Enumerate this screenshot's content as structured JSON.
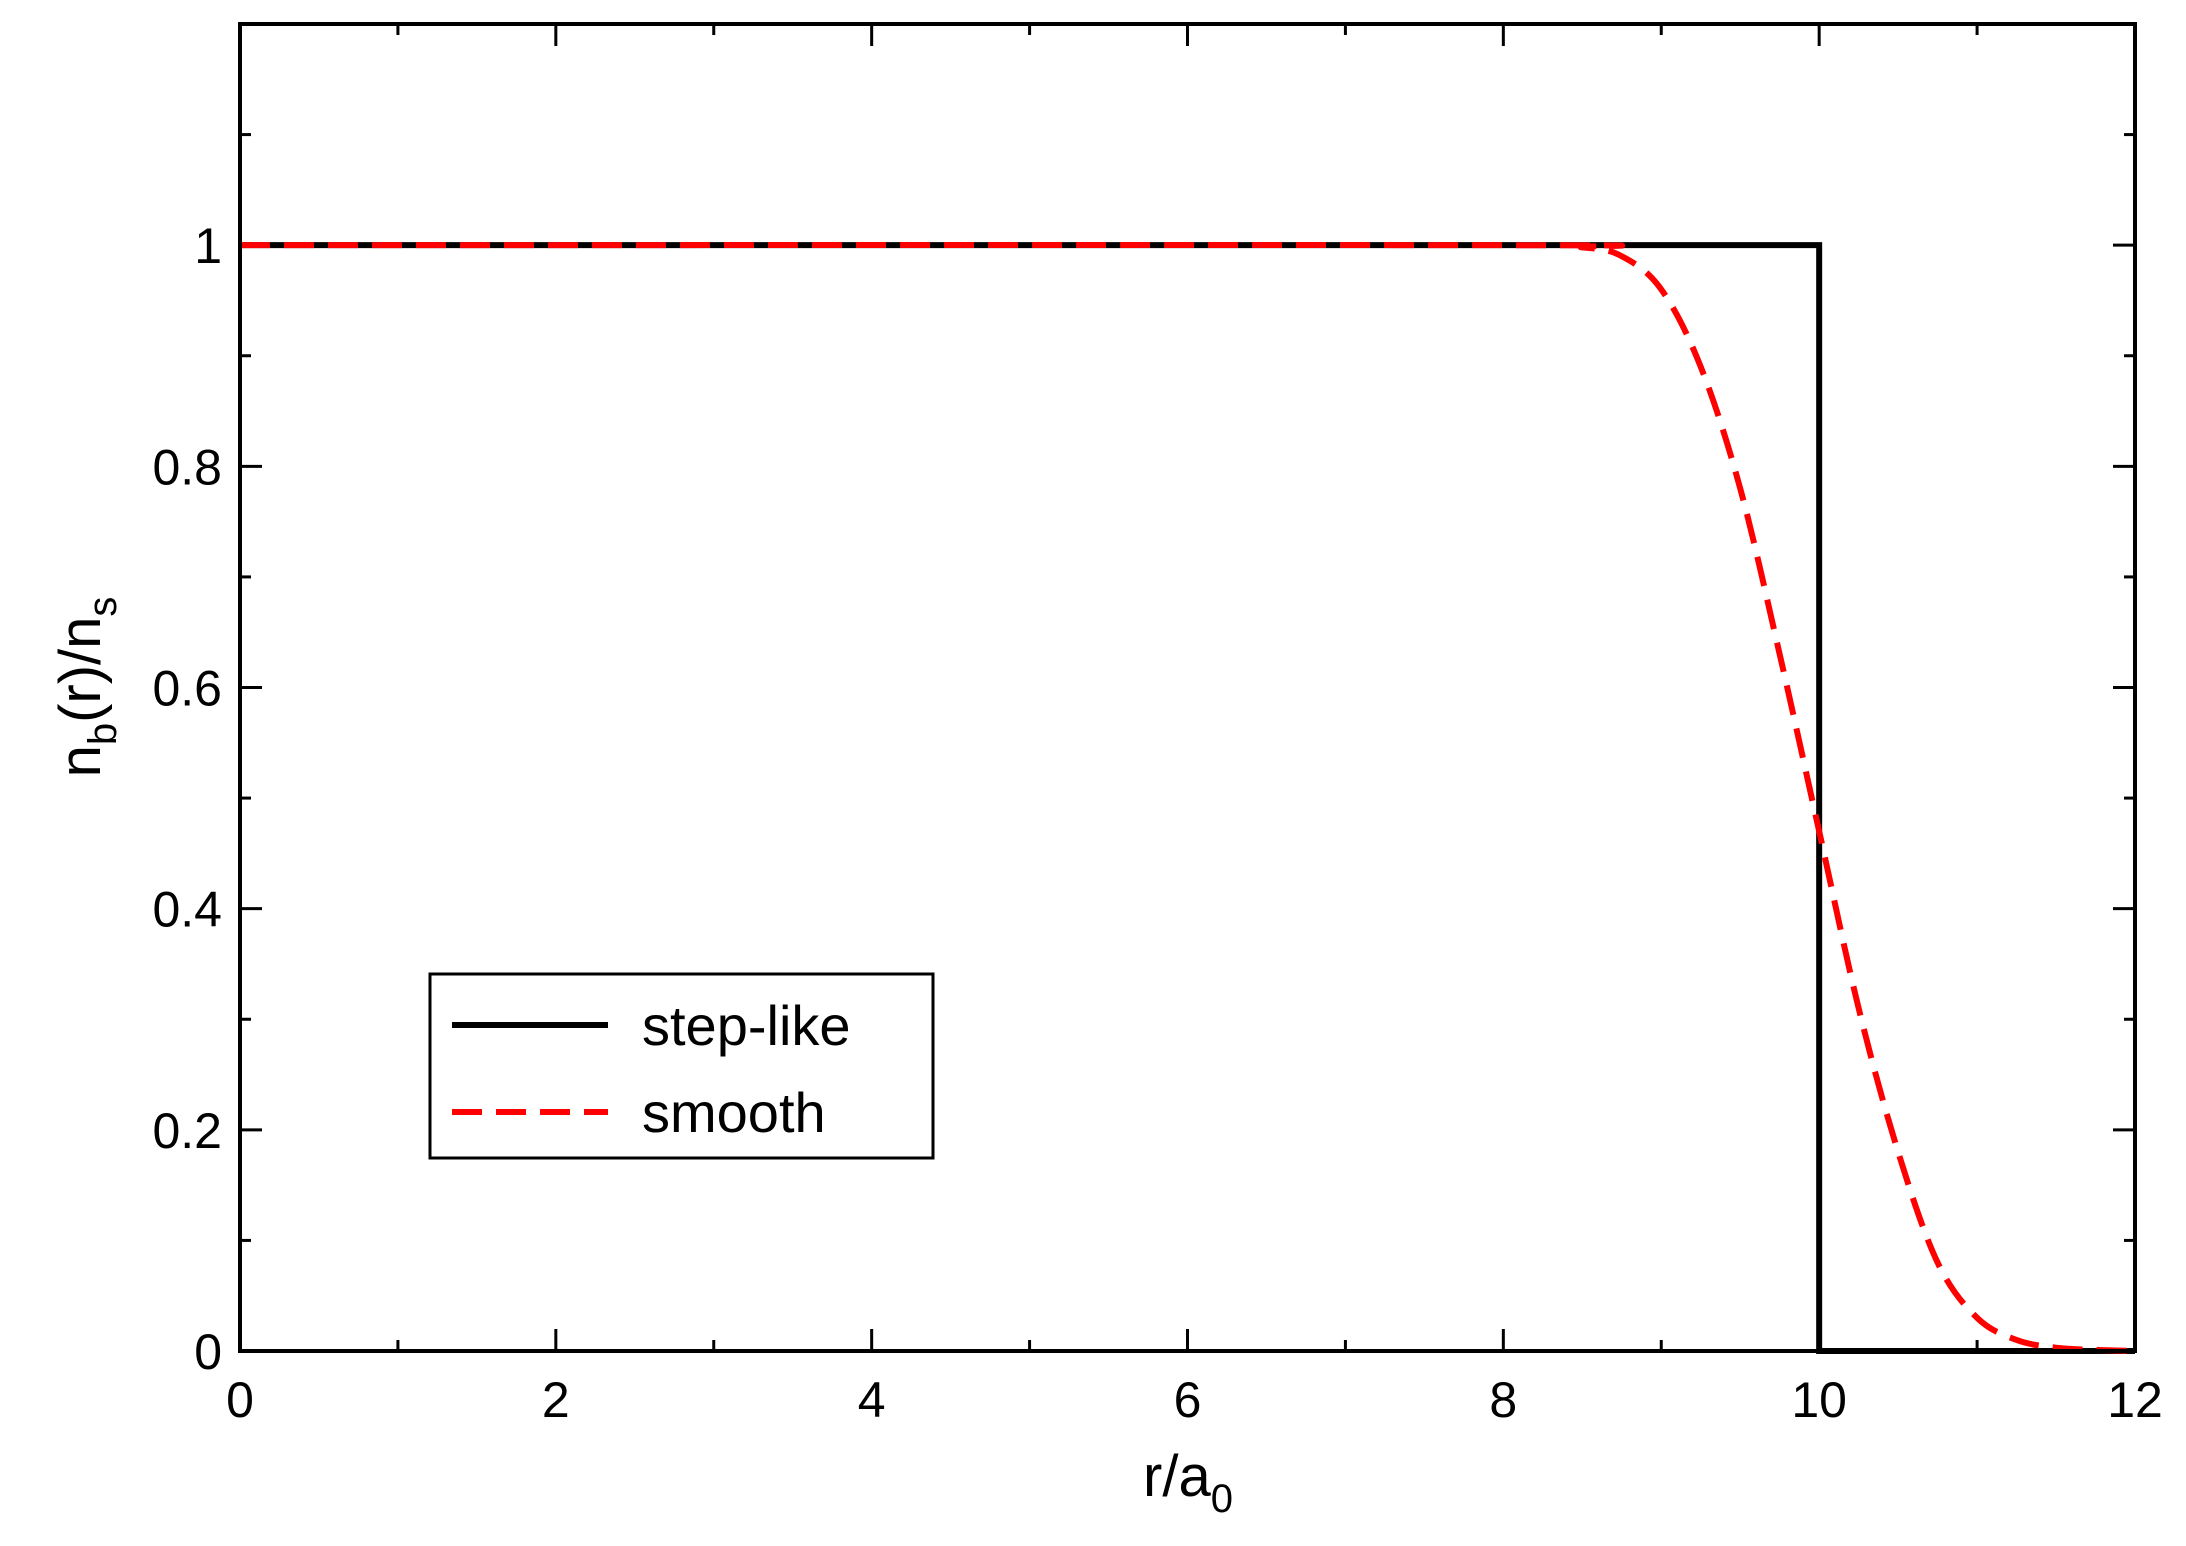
{
  "chart_data": {
    "type": "line",
    "xlabel": {
      "main": "r/a",
      "sub": "0"
    },
    "ylabel": {
      "pre": "n",
      "sub1": "b",
      "mid": "(r)/n",
      "sub2": "s"
    },
    "xlim": [
      0,
      12
    ],
    "ylim": [
      0,
      1.2
    ],
    "x_major_ticks": [
      0,
      2,
      4,
      6,
      8,
      10,
      12
    ],
    "x_tick_labels": [
      "0",
      "2",
      "4",
      "6",
      "8",
      "10",
      "12"
    ],
    "y_major_ticks": [
      0,
      0.2,
      0.4,
      0.6,
      0.8,
      1
    ],
    "y_tick_labels": [
      "0",
      "0.2",
      "0.4",
      "0.6",
      "0.8",
      "1"
    ],
    "x_minor_step": 1,
    "y_minor_step": 0.1,
    "grid": false,
    "legend_placement": "lower-left",
    "series": [
      {
        "name": "step-like",
        "color": "#000000",
        "style": "solid",
        "x": [
          0,
          10,
          10,
          12
        ],
        "y": [
          1,
          1,
          0,
          0
        ]
      },
      {
        "name": "smooth",
        "color": "#ff0000",
        "style": "dashed",
        "x": [
          0,
          8,
          8.5,
          8.75,
          9.0,
          9.25,
          9.5,
          9.75,
          10.0,
          10.25,
          10.5,
          10.75,
          11.0,
          11.25,
          11.5,
          11.75,
          12
        ],
        "y": [
          1,
          1,
          0.998,
          0.99,
          0.96,
          0.89,
          0.78,
          0.63,
          0.47,
          0.31,
          0.18,
          0.08,
          0.03,
          0.01,
          0.003,
          0.001,
          0
        ]
      }
    ]
  }
}
